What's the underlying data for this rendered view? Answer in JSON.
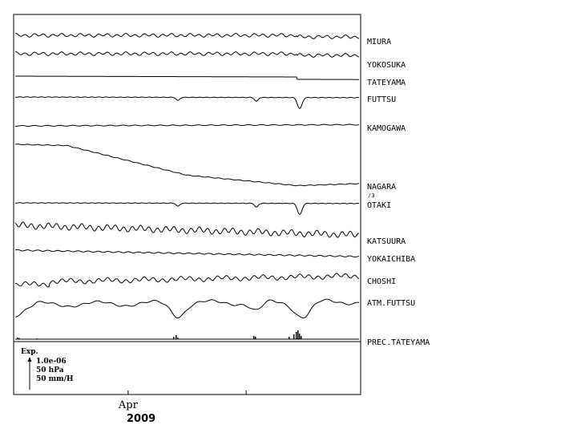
{
  "chart_data": {
    "type": "line",
    "title": "",
    "xlabel": "",
    "ylabel": "",
    "x_ticks": [
      {
        "label": "Apr",
        "position_fraction": 0.33
      },
      {
        "label": "",
        "position_fraction": 0.67
      }
    ],
    "year_label": "2009",
    "grid": false,
    "series": [
      {
        "name": "MIURA",
        "shape": "wavy"
      },
      {
        "name": "YOKOSUKA",
        "shape": "wavy"
      },
      {
        "name": "TATEYAMA",
        "shape": "flat-step"
      },
      {
        "name": "FUTTSU",
        "shape": "dips"
      },
      {
        "name": "KAMOGAWA",
        "shape": "flat"
      },
      {
        "name": "NAGARA",
        "shape": "decline",
        "scale_note": "/3"
      },
      {
        "name": "OTAKI",
        "shape": "dips"
      },
      {
        "name": "KATSUURA",
        "shape": "wavy-strong"
      },
      {
        "name": "YOKAICHIBA",
        "shape": "slight-decline"
      },
      {
        "name": "CHOSHI",
        "shape": "wavy-rise"
      },
      {
        "name": "ATM.FUTTSU",
        "shape": "pressure"
      },
      {
        "name": "PREC.TATEYAMA",
        "shape": "precip"
      }
    ],
    "scale_legend": {
      "title": "Exp.",
      "lines": [
        "1.0e-06",
        "50 hPa",
        "50 mm/H"
      ]
    }
  }
}
